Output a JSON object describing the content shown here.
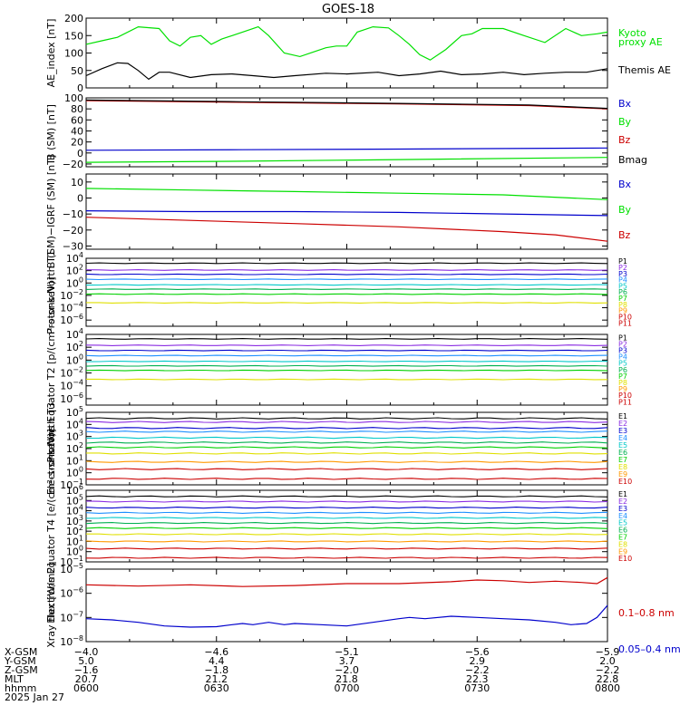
{
  "title": "GOES-18",
  "colors": {
    "black": "#000000",
    "green": "#00e000",
    "blue": "#0000cc",
    "red": "#cc0000",
    "p_series": [
      "#000000",
      "#8a2be2",
      "#0000cc",
      "#1e90ff",
      "#00c8c8",
      "#00b050",
      "#00d000",
      "#e0e000",
      "#ff9900",
      "#cc0000",
      "#cc0000"
    ],
    "e_series": [
      "#000000",
      "#8a2be2",
      "#0000cc",
      "#1e90ff",
      "#00c8c8",
      "#00b050",
      "#00d000",
      "#e0e000",
      "#ff9900",
      "#cc0000",
      "#cc0000"
    ]
  },
  "chart_data": [
    {
      "type": "line",
      "id": "ae",
      "ylabel": "AE_index [nT]",
      "ylim": [
        0,
        200
      ],
      "yticks": [
        "0",
        "50",
        "100",
        "150",
        "200"
      ],
      "series": [
        {
          "name": "Kyoto proxy AE",
          "color": "green",
          "x": [
            0,
            0.03,
            0.06,
            0.1,
            0.14,
            0.16,
            0.18,
            0.2,
            0.22,
            0.24,
            0.26,
            0.28,
            0.3,
            0.33,
            0.35,
            0.38,
            0.41,
            0.44,
            0.46,
            0.48,
            0.5,
            0.52,
            0.55,
            0.58,
            0.6,
            0.62,
            0.64,
            0.66,
            0.69,
            0.72,
            0.74,
            0.76,
            0.8,
            0.84,
            0.88,
            0.92,
            0.95,
            0.98,
            1
          ],
          "y": [
            125,
            135,
            145,
            175,
            170,
            135,
            120,
            145,
            150,
            125,
            140,
            150,
            160,
            175,
            150,
            100,
            90,
            105,
            115,
            120,
            120,
            160,
            175,
            172,
            150,
            125,
            95,
            80,
            110,
            150,
            155,
            170,
            170,
            150,
            130,
            170,
            150,
            155,
            160
          ]
        },
        {
          "name": "Themis AE",
          "color": "black",
          "x": [
            0,
            0.03,
            0.06,
            0.08,
            0.1,
            0.12,
            0.14,
            0.16,
            0.2,
            0.24,
            0.28,
            0.32,
            0.36,
            0.4,
            0.46,
            0.5,
            0.56,
            0.6,
            0.64,
            0.68,
            0.72,
            0.76,
            0.8,
            0.84,
            0.88,
            0.92,
            0.96,
            1
          ],
          "y": [
            35,
            55,
            72,
            70,
            50,
            25,
            45,
            45,
            30,
            38,
            40,
            35,
            30,
            35,
            42,
            40,
            45,
            35,
            40,
            48,
            38,
            40,
            45,
            38,
            42,
            45,
            45,
            55
          ]
        }
      ],
      "legend": [
        {
          "text": "Kyoto",
          "color": "green"
        },
        {
          "text": "proxy AE",
          "color": "green"
        },
        {
          "text": "Themis AE",
          "color": "black"
        }
      ]
    },
    {
      "type": "line",
      "id": "bsm",
      "ylabel": "B (SM) [nT]",
      "ylim": [
        -25,
        100
      ],
      "yticks": [
        "−20",
        "0",
        "20",
        "40",
        "60",
        "80",
        "100"
      ],
      "series": [
        {
          "name": "Bx",
          "color": "blue",
          "x": [
            0,
            0.3,
            0.6,
            1
          ],
          "y": [
            5,
            6,
            7,
            9
          ]
        },
        {
          "name": "By",
          "color": "green",
          "x": [
            0,
            0.3,
            0.6,
            1
          ],
          "y": [
            -17,
            -15,
            -12,
            -8
          ]
        },
        {
          "name": "Bz",
          "color": "red",
          "x": [
            0,
            0.3,
            0.6,
            0.85,
            1
          ],
          "y": [
            95,
            92,
            89,
            86,
            80
          ]
        },
        {
          "name": "Bmag",
          "color": "black",
          "x": [
            0,
            0.3,
            0.6,
            0.85,
            1
          ],
          "y": [
            96,
            93,
            90,
            87,
            81
          ]
        }
      ],
      "legend": [
        {
          "text": "Bx",
          "color": "blue"
        },
        {
          "text": "By",
          "color": "green"
        },
        {
          "text": "Bz",
          "color": "red"
        },
        {
          "text": "Bmag",
          "color": "black"
        }
      ]
    },
    {
      "type": "line",
      "id": "bigrf",
      "ylabel": "B (SM)−IGRF (SM) [nT]",
      "ylim": [
        -32,
        15
      ],
      "yticks": [
        "−30",
        "−20",
        "−10",
        "0",
        "10"
      ],
      "series": [
        {
          "name": "Bx",
          "color": "blue",
          "x": [
            0,
            0.2,
            0.4,
            0.6,
            0.8,
            1
          ],
          "y": [
            -8,
            -8.5,
            -8.5,
            -9,
            -10,
            -11
          ]
        },
        {
          "name": "By",
          "color": "green",
          "x": [
            0,
            0.2,
            0.4,
            0.6,
            0.8,
            1
          ],
          "y": [
            6,
            5,
            4,
            3,
            2,
            -1
          ]
        },
        {
          "name": "Bz",
          "color": "red",
          "x": [
            0,
            0.2,
            0.4,
            0.6,
            0.8,
            0.9,
            1
          ],
          "y": [
            -12,
            -14,
            -16,
            -18,
            -21,
            -23,
            -27
          ]
        }
      ],
      "legend": [
        {
          "text": "Bx",
          "color": "blue"
        },
        {
          "text": "By",
          "color": "green"
        },
        {
          "text": "Bz",
          "color": "red"
        }
      ]
    },
    {
      "type": "line",
      "id": "pt1",
      "log": true,
      "ylabel": "Protons North T1",
      "ylim_exp": [
        -7,
        4
      ],
      "ytick_exps": [
        -6,
        -4,
        -2,
        0,
        2,
        4
      ],
      "levels": [
        3.2,
        2.1,
        1.4,
        0.6,
        -0.3,
        -1.0,
        -1.8,
        -3.2
      ],
      "legend": [
        "P1",
        "P2",
        "P3",
        "P4",
        "P5",
        "P6",
        "P7",
        "P8",
        "P9",
        "P10",
        "P11"
      ]
    },
    {
      "type": "line",
      "id": "pt2",
      "log": true,
      "ylabel": "Protons Equator T2 [p/(cm²-s-sr-keV)]",
      "ylim_exp": [
        -7,
        4
      ],
      "ytick_exps": [
        -6,
        -4,
        -2,
        0,
        2,
        4
      ],
      "levels": [
        3.3,
        2.3,
        1.5,
        0.7,
        -0.2,
        -0.9,
        -1.6,
        -3.0
      ],
      "legend": [
        "P1",
        "P2",
        "P3",
        "P4",
        "P5",
        "P6",
        "P7",
        "P8",
        "P9",
        "P10",
        "P11"
      ]
    },
    {
      "type": "line",
      "id": "et3",
      "log": true,
      "ylabel": "Electrons North T3",
      "ylim_exp": [
        -1,
        5
      ],
      "ytick_exps": [
        -1,
        0,
        1,
        2,
        3,
        4,
        5
      ],
      "levels": [
        4.5,
        4.2,
        3.7,
        3.4,
        2.9,
        2.5,
        2.1,
        1.6,
        0.9,
        0.3,
        -0.5
      ],
      "legend": [
        "E1",
        "E2",
        "E3",
        "E4",
        "E5",
        "E6",
        "E7",
        "E8",
        "E9",
        "E10"
      ]
    },
    {
      "type": "line",
      "id": "et4",
      "log": true,
      "ylabel": "Electrons Equator T4 [e/(cm²-s-sr-keV)]",
      "ylim_exp": [
        -1,
        6
      ],
      "ytick_exps": [
        -1,
        0,
        1,
        2,
        3,
        4,
        5,
        6
      ],
      "levels": [
        5.4,
        4.9,
        4.3,
        3.8,
        3.3,
        2.8,
        2.3,
        1.7,
        1.0,
        0.3,
        -0.6
      ],
      "legend": [
        "E1",
        "E2",
        "E3",
        "E4",
        "E5",
        "E6",
        "E7",
        "E8",
        "E9",
        "E10"
      ]
    },
    {
      "type": "line",
      "id": "xray",
      "log": true,
      "ylabel": "Xray flux [W/m2]",
      "ylim_exp": [
        -8,
        -5
      ],
      "ytick_exps": [
        -8,
        -7,
        -6,
        -5
      ],
      "series": [
        {
          "name": "0.1-0.8 nm",
          "color": "red",
          "x": [
            0,
            0.1,
            0.2,
            0.3,
            0.4,
            0.5,
            0.6,
            0.7,
            0.75,
            0.8,
            0.85,
            0.9,
            0.95,
            0.98,
            1
          ],
          "y": [
            -5.65,
            -5.7,
            -5.65,
            -5.72,
            -5.68,
            -5.6,
            -5.6,
            -5.52,
            -5.45,
            -5.48,
            -5.55,
            -5.5,
            -5.55,
            -5.6,
            -5.35
          ]
        },
        {
          "name": "0.05-0.4 nm",
          "color": "blue",
          "x": [
            0,
            0.05,
            0.1,
            0.15,
            0.2,
            0.25,
            0.28,
            0.3,
            0.32,
            0.35,
            0.38,
            0.4,
            0.45,
            0.5,
            0.55,
            0.6,
            0.62,
            0.65,
            0.7,
            0.75,
            0.8,
            0.85,
            0.9,
            0.93,
            0.96,
            0.98,
            1
          ],
          "y": [
            -7.05,
            -7.1,
            -7.2,
            -7.35,
            -7.4,
            -7.38,
            -7.3,
            -7.25,
            -7.3,
            -7.2,
            -7.3,
            -7.25,
            -7.3,
            -7.35,
            -7.2,
            -7.05,
            -7.0,
            -7.05,
            -6.95,
            -7.0,
            -7.05,
            -7.1,
            -7.2,
            -7.3,
            -7.25,
            -7.0,
            -6.5
          ]
        }
      ],
      "legend": [
        {
          "text": "0.1–0.8 nm",
          "color": "red"
        },
        {
          "text": "0.05–0.4 nm",
          "color": "blue"
        }
      ]
    }
  ],
  "footer": {
    "row_labels": [
      "X-GSM",
      "Y-GSM",
      "Z-GSM",
      "MLT",
      "hhmm",
      "2025 Jan 27"
    ],
    "columns": [
      [
        "−4.0",
        "5.0",
        "−1.6",
        "20.7",
        "0600"
      ],
      [
        "−4.6",
        "4.4",
        "−1.8",
        "21.2",
        "0630"
      ],
      [
        "−5.1",
        "3.7",
        "−2.0",
        "21.8",
        "0700"
      ],
      [
        "−5.6",
        "2.9",
        "−2.2",
        "22.3",
        "0730"
      ],
      [
        "−5.9",
        "2.0",
        "−2.2",
        "22.8",
        "0800"
      ]
    ]
  }
}
